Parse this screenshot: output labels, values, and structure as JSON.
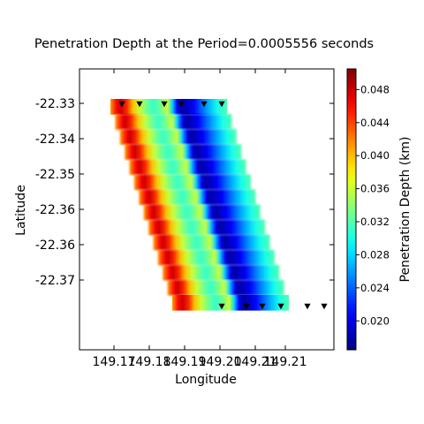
{
  "chart_data": {
    "type": "heatmap",
    "title": "Penetration Depth at the Period=0.0005556 seconds",
    "xlabel": "Longitude",
    "ylabel": "Latitude",
    "x_ticks": [
      "149.17",
      "149.18",
      "149.19",
      "149.20",
      "149.21",
      "149.21"
    ],
    "y_ticks": [
      "-22.33",
      "-22.34",
      "-22.35",
      "-22.36",
      "-22.36",
      "-22.37"
    ],
    "colorbar": {
      "label": "Penetration Depth (km)",
      "min": 0.0165,
      "max": 0.0505,
      "ticks": [
        "0.020",
        "0.024",
        "0.028",
        "0.032",
        "0.036",
        "0.040",
        "0.044",
        "0.048"
      ],
      "tick_values": [
        0.02,
        0.024,
        0.028,
        0.032,
        0.036,
        0.04,
        0.044,
        0.048
      ],
      "colormap": "jet_r"
    },
    "field": {
      "x_range": [
        0,
        1
      ],
      "profile_x": [
        0.0,
        0.05,
        0.09,
        0.14,
        0.19,
        0.25,
        0.31,
        0.37,
        0.43,
        0.49,
        0.53,
        0.57,
        0.61,
        0.66,
        0.72,
        0.78,
        0.85,
        0.92,
        1.0
      ],
      "profile_values": [
        0.041,
        0.046,
        0.048,
        0.045,
        0.04,
        0.036,
        0.033,
        0.031,
        0.033,
        0.036,
        0.028,
        0.021,
        0.0175,
        0.019,
        0.021,
        0.024,
        0.027,
        0.03,
        0.032
      ]
    },
    "stations": {
      "marker": "triangle-down",
      "color": "#000000",
      "top_row_lon_fraction": [
        0.09,
        0.29,
        0.57,
        0.76,
        1.02,
        1.22
      ],
      "bottom_row_lon_fraction": [
        0.76,
        1.04,
        1.22,
        1.43,
        1.73,
        1.92
      ]
    },
    "grid": false
  }
}
